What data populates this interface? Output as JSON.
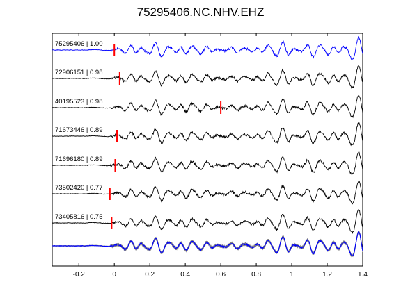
{
  "chart_data": {
    "type": "line",
    "title": "75295406.NC.NHV.EHZ",
    "xlabel": "",
    "ylabel": "",
    "xlim": [
      -0.35,
      1.4
    ],
    "x_ticks": [
      -0.2,
      0,
      0.2,
      0.4,
      0.6,
      0.8,
      1,
      1.2,
      1.4
    ],
    "x_tick_labels": [
      "-0.2",
      "0",
      "0.2",
      "0.4",
      "0.6",
      "0.8",
      "1",
      "1.2",
      "1.4"
    ],
    "grid": false,
    "traces": [
      {
        "name": "75295406 | 1.00",
        "event_id": "75295406",
        "correlation": 1.0,
        "pick_time": 0.0,
        "color": "#0000ff",
        "seed": 1
      },
      {
        "name": "72906151 | 0.98",
        "event_id": "72906151",
        "correlation": 0.98,
        "pick_time": 0.03,
        "color": "#000000",
        "seed": 2
      },
      {
        "name": "40195523 | 0.98",
        "event_id": "40195523",
        "correlation": 0.98,
        "pick_time": 0.6,
        "color": "#000000",
        "seed": 3
      },
      {
        "name": "71673446 | 0.89",
        "event_id": "71673446",
        "correlation": 0.89,
        "pick_time": 0.015,
        "color": "#000000",
        "seed": 4
      },
      {
        "name": "71696180 | 0.89",
        "event_id": "71696180",
        "correlation": 0.89,
        "pick_time": 0.005,
        "color": "#000000",
        "seed": 5
      },
      {
        "name": "73502420 | 0.77",
        "event_id": "73502420",
        "correlation": 0.77,
        "pick_time": -0.025,
        "color": "#000000",
        "seed": 6
      },
      {
        "name": "73405816 | 0.75",
        "event_id": "73405816",
        "correlation": 0.75,
        "pick_time": -0.015,
        "color": "#000000",
        "seed": 7
      }
    ],
    "stack": {
      "color_overlay": "#808080",
      "color_reference": "#0000ff"
    },
    "pick_color": "#ff0000"
  }
}
